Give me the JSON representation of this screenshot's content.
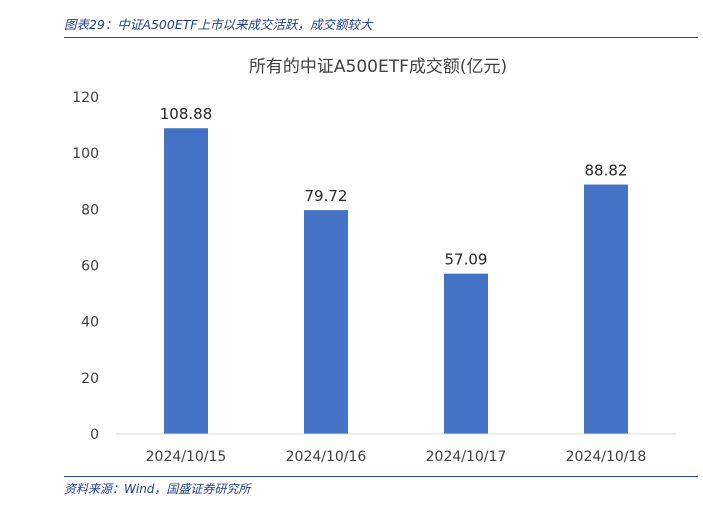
{
  "caption": "图表29：中证A500ETF上市以来成交活跃，成交额较大",
  "source": "资料来源：Wind，国盛证券研究所",
  "colors": {
    "bar": "#4472c4",
    "rule": "#1f4e9a",
    "axis": "#d9d9d9",
    "caption": "#1f3f8f"
  },
  "chart_data": {
    "type": "bar",
    "title": "所有的中证A500ETF成交额(亿元)",
    "categories": [
      "2024/10/15",
      "2024/10/16",
      "2024/10/17",
      "2024/10/18"
    ],
    "values": [
      108.88,
      79.72,
      57.09,
      88.82
    ],
    "data_labels": [
      "108.88",
      "79.72",
      "57.09",
      "88.82"
    ],
    "yticks": [
      0,
      20,
      40,
      60,
      80,
      100,
      120
    ],
    "ylim": [
      0,
      120
    ],
    "xlabel": "",
    "ylabel": "",
    "grid": false,
    "legend": "none"
  }
}
